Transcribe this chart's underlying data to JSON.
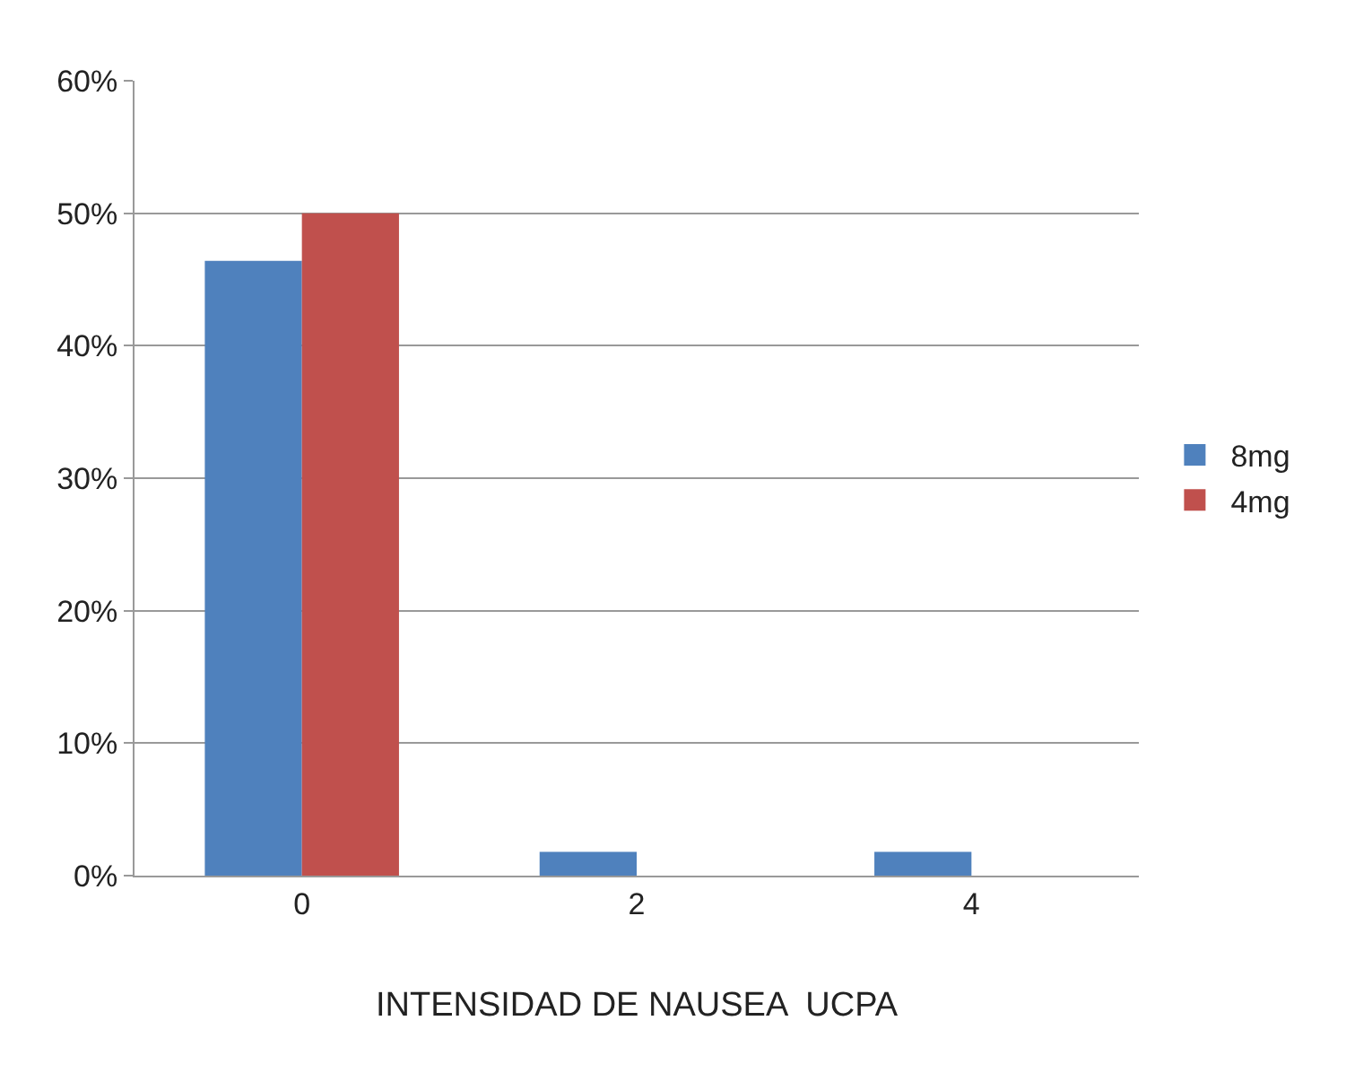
{
  "chart_data": {
    "type": "bar",
    "xlabel": "INTENSIDAD DE NAUSEA  UCPA",
    "categories": [
      "0",
      "2",
      "4"
    ],
    "series": [
      {
        "name": "8mg",
        "color": "#4f81bd",
        "values": [
          46.4,
          1.8,
          1.8
        ]
      },
      {
        "name": "4mg",
        "color": "#c0504d",
        "values": [
          50,
          0,
          0
        ]
      }
    ],
    "ylim": [
      0,
      60
    ],
    "yticks": [
      {
        "value": 0,
        "label": "0%"
      },
      {
        "value": 10,
        "label": "10%"
      },
      {
        "value": 20,
        "label": "20%"
      },
      {
        "value": 30,
        "label": "30%"
      },
      {
        "value": 40,
        "label": "40%"
      },
      {
        "value": 50,
        "label": "50%"
      },
      {
        "value": 60,
        "label": "60%"
      }
    ],
    "grid": "y",
    "legend": "right"
  }
}
